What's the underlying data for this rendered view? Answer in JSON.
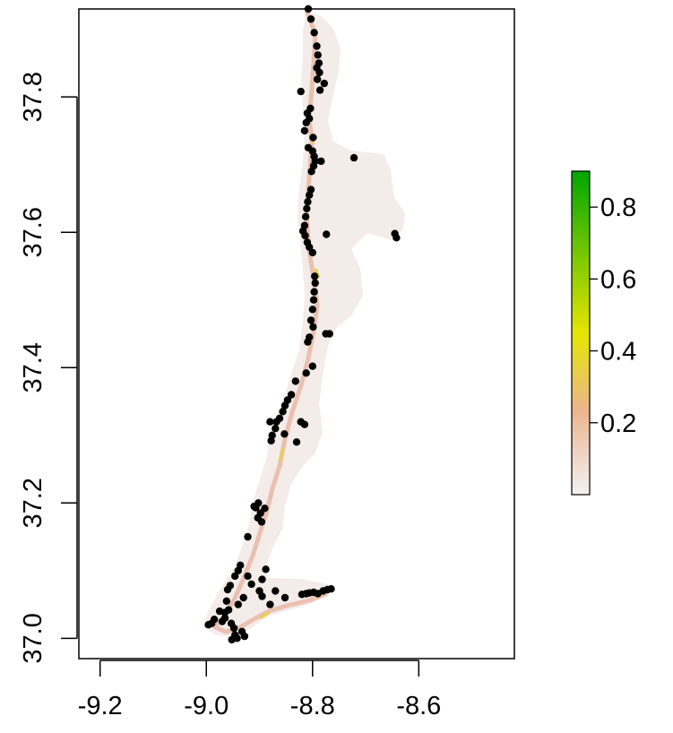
{
  "chart_data": {
    "type": "scatter",
    "title": "",
    "xlabel": "",
    "ylabel": "",
    "xlim": [
      -9.24,
      -8.42
    ],
    "ylim": [
      36.97,
      37.93
    ],
    "x_ticks": [
      "-9.2",
      "-9.0",
      "-8.8",
      "-8.6"
    ],
    "x_tick_values": [
      -9.2,
      -9.0,
      -8.8,
      -8.6
    ],
    "y_ticks": [
      "37.0",
      "37.2",
      "37.4",
      "37.6",
      "37.8"
    ],
    "y_tick_values": [
      37.0,
      37.2,
      37.4,
      37.6,
      37.8
    ],
    "grid": false,
    "legend": {
      "type": "colorbar",
      "placement": "right",
      "range": [
        0.0,
        0.9
      ],
      "tick_labels": [
        "0.2",
        "0.4",
        "0.6",
        "0.8"
      ],
      "tick_values": [
        0.2,
        0.4,
        0.6,
        0.8
      ],
      "colors": [
        "#f2f2f2",
        "#ebb58e",
        "#e6e600",
        "#00a600"
      ]
    },
    "raster": {
      "description": "suitability surface over coastal strip",
      "base_color": "#f3ece9",
      "coast_color": "#e8b8a6",
      "coast_highlight_color": "#e6d24a"
    },
    "series": [
      {
        "marker_color": "#000000",
        "points": [
          [
            -8.808,
            37.93
          ],
          [
            -8.803,
            37.915
          ],
          [
            -8.797,
            37.895
          ],
          [
            -8.792,
            37.875
          ],
          [
            -8.79,
            37.862
          ],
          [
            -8.788,
            37.85
          ],
          [
            -8.792,
            37.843
          ],
          [
            -8.787,
            37.836
          ],
          [
            -8.791,
            37.826
          ],
          [
            -8.778,
            37.82
          ],
          [
            -8.786,
            37.81
          ],
          [
            -8.822,
            37.808
          ],
          [
            -8.804,
            37.783
          ],
          [
            -8.81,
            37.776
          ],
          [
            -8.806,
            37.768
          ],
          [
            -8.812,
            37.762
          ],
          [
            -8.815,
            37.75
          ],
          [
            -8.799,
            37.74
          ],
          [
            -8.808,
            37.725
          ],
          [
            -8.8,
            37.72
          ],
          [
            -8.797,
            37.712
          ],
          [
            -8.795,
            37.705
          ],
          [
            -8.798,
            37.698
          ],
          [
            -8.802,
            37.69
          ],
          [
            -8.784,
            37.705
          ],
          [
            -8.722,
            37.71
          ],
          [
            -8.803,
            37.663
          ],
          [
            -8.806,
            37.655
          ],
          [
            -8.809,
            37.645
          ],
          [
            -8.811,
            37.635
          ],
          [
            -8.813,
            37.623
          ],
          [
            -8.815,
            37.61
          ],
          [
            -8.818,
            37.602
          ],
          [
            -8.814,
            37.595
          ],
          [
            -8.81,
            37.585
          ],
          [
            -8.806,
            37.578
          ],
          [
            -8.8,
            37.57
          ],
          [
            -8.774,
            37.597
          ],
          [
            -8.645,
            37.598
          ],
          [
            -8.642,
            37.592
          ],
          [
            -8.796,
            37.535
          ],
          [
            -8.795,
            37.525
          ],
          [
            -8.797,
            37.512
          ],
          [
            -8.798,
            37.5
          ],
          [
            -8.8,
            37.486
          ],
          [
            -8.803,
            37.47
          ],
          [
            -8.799,
            37.46
          ],
          [
            -8.806,
            37.445
          ],
          [
            -8.809,
            37.438
          ],
          [
            -8.775,
            37.45
          ],
          [
            -8.768,
            37.45
          ],
          [
            -8.8,
            37.402
          ],
          [
            -8.812,
            37.392
          ],
          [
            -8.832,
            37.38
          ],
          [
            -8.84,
            37.36
          ],
          [
            -8.847,
            37.352
          ],
          [
            -8.852,
            37.344
          ],
          [
            -8.856,
            37.335
          ],
          [
            -8.862,
            37.325
          ],
          [
            -8.868,
            37.32
          ],
          [
            -8.88,
            37.32
          ],
          [
            -8.87,
            37.31
          ],
          [
            -8.876,
            37.3
          ],
          [
            -8.878,
            37.292
          ],
          [
            -8.822,
            37.32
          ],
          [
            -8.815,
            37.316
          ],
          [
            -8.853,
            37.302
          ],
          [
            -8.83,
            37.29
          ],
          [
            -8.902,
            37.2
          ],
          [
            -8.907,
            37.193
          ],
          [
            -8.898,
            37.185
          ],
          [
            -8.903,
            37.178
          ],
          [
            -8.896,
            37.172
          ],
          [
            -8.91,
            37.195
          ],
          [
            -8.89,
            37.192
          ],
          [
            -8.922,
            37.15
          ],
          [
            -8.936,
            37.108
          ],
          [
            -8.94,
            37.1
          ],
          [
            -8.946,
            37.092
          ],
          [
            -8.922,
            37.092
          ],
          [
            -8.955,
            37.078
          ],
          [
            -8.96,
            37.072
          ],
          [
            -8.93,
            37.06
          ],
          [
            -8.94,
            37.05
          ],
          [
            -8.958,
            37.042
          ],
          [
            -8.965,
            37.038
          ],
          [
            -8.975,
            37.04
          ],
          [
            -8.965,
            37.03
          ],
          [
            -8.97,
            37.025
          ],
          [
            -8.99,
            37.022
          ],
          [
            -8.996,
            37.02
          ],
          [
            -8.985,
            37.028
          ],
          [
            -8.953,
            37.022
          ],
          [
            -8.948,
            37.015
          ],
          [
            -8.946,
            37.005
          ],
          [
            -8.942,
            37.0
          ],
          [
            -8.952,
            36.998
          ],
          [
            -8.933,
            37.01
          ],
          [
            -8.928,
            37.003
          ],
          [
            -8.9,
            37.07
          ],
          [
            -8.895,
            37.062
          ],
          [
            -8.87,
            37.07
          ],
          [
            -8.88,
            37.05
          ],
          [
            -8.852,
            37.06
          ],
          [
            -8.82,
            37.065
          ],
          [
            -8.812,
            37.066
          ],
          [
            -8.806,
            37.067
          ],
          [
            -8.798,
            37.068
          ],
          [
            -8.79,
            37.066
          ],
          [
            -8.78,
            37.07
          ],
          [
            -8.772,
            37.072
          ],
          [
            -8.765,
            37.073
          ],
          [
            -8.895,
            37.087
          ],
          [
            -8.915,
            37.08
          ],
          [
            -8.888,
            37.102
          ],
          [
            -8.962,
            37.055
          ]
        ]
      }
    ]
  }
}
